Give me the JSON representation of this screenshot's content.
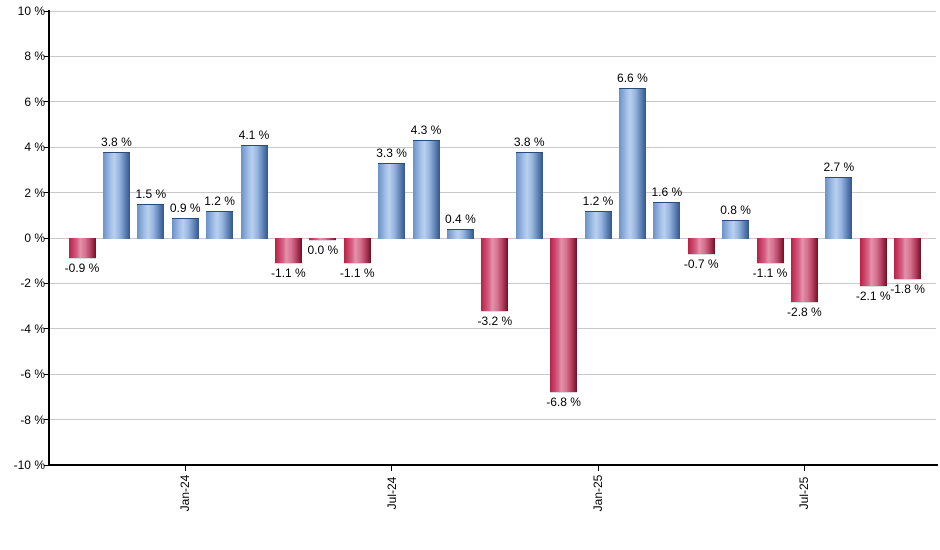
{
  "chart_data": {
    "type": "bar",
    "title": "",
    "xlabel": "",
    "ylabel": "",
    "ylim": [
      -10,
      10
    ],
    "ytick_step": 2,
    "grid": true,
    "legend": false,
    "value_suffix": " %",
    "yticks": [
      {
        "v": 10,
        "label": "10 %"
      },
      {
        "v": 8,
        "label": "8 %"
      },
      {
        "v": 6,
        "label": "6 %"
      },
      {
        "v": 4,
        "label": "4 %"
      },
      {
        "v": 2,
        "label": "2 %"
      },
      {
        "v": 0,
        "label": "0 %"
      },
      {
        "v": -2,
        "label": "-2 %"
      },
      {
        "v": -4,
        "label": "-4 %"
      },
      {
        "v": -6,
        "label": "-6 %"
      },
      {
        "v": -8,
        "label": "-8 %"
      },
      {
        "v": -10,
        "label": "-10 %"
      }
    ],
    "xticks": [
      {
        "index": 3,
        "label": "Jan-24"
      },
      {
        "index": 9,
        "label": "Jul-24"
      },
      {
        "index": 15,
        "label": "Jan-25"
      },
      {
        "index": 21,
        "label": "Jul-25"
      }
    ],
    "points": [
      {
        "value": -0.9,
        "label": "-0.9 %",
        "color": "neg"
      },
      {
        "value": 3.8,
        "label": "3.8 %",
        "color": "pos"
      },
      {
        "value": 1.5,
        "label": "1.5 %",
        "color": "pos"
      },
      {
        "value": 0.9,
        "label": "0.9 %",
        "color": "pos"
      },
      {
        "value": 1.2,
        "label": "1.2 %",
        "color": "pos"
      },
      {
        "value": 4.1,
        "label": "4.1 %",
        "color": "pos"
      },
      {
        "value": -1.1,
        "label": "-1.1 %",
        "color": "neg"
      },
      {
        "value": 0.0,
        "label": "0.0 %",
        "color": "neg"
      },
      {
        "value": -1.1,
        "label": "-1.1 %",
        "color": "neg"
      },
      {
        "value": 3.3,
        "label": "3.3 %",
        "color": "pos"
      },
      {
        "value": 4.3,
        "label": "4.3 %",
        "color": "pos"
      },
      {
        "value": 0.4,
        "label": "0.4 %",
        "color": "pos"
      },
      {
        "value": -3.2,
        "label": "-3.2 %",
        "color": "neg"
      },
      {
        "value": 3.8,
        "label": "3.8 %",
        "color": "pos"
      },
      {
        "value": -6.8,
        "label": "-6.8 %",
        "color": "neg"
      },
      {
        "value": 1.2,
        "label": "1.2 %",
        "color": "pos"
      },
      {
        "value": 6.6,
        "label": "6.6 %",
        "color": "pos"
      },
      {
        "value": 1.6,
        "label": "1.6 %",
        "color": "pos"
      },
      {
        "value": -0.7,
        "label": "-0.7 %",
        "color": "neg"
      },
      {
        "value": 0.8,
        "label": "0.8 %",
        "color": "pos"
      },
      {
        "value": -1.1,
        "label": "-1.1 %",
        "color": "neg"
      },
      {
        "value": -2.8,
        "label": "-2.8 %",
        "color": "neg"
      },
      {
        "value": 2.7,
        "label": "2.7 %",
        "color": "pos"
      },
      {
        "value": -2.1,
        "label": "-2.1 %",
        "color": "neg"
      },
      {
        "value": -1.8,
        "label": "-1.8 %",
        "color": "neg"
      }
    ],
    "colors": {
      "positive_light": "#b9d0ee",
      "positive_dark": "#33568e",
      "negative_light": "#e592aa",
      "negative_dark": "#701021",
      "gridline": "#c9c9c9",
      "axis": "#000000",
      "label_text": "#000000"
    }
  }
}
